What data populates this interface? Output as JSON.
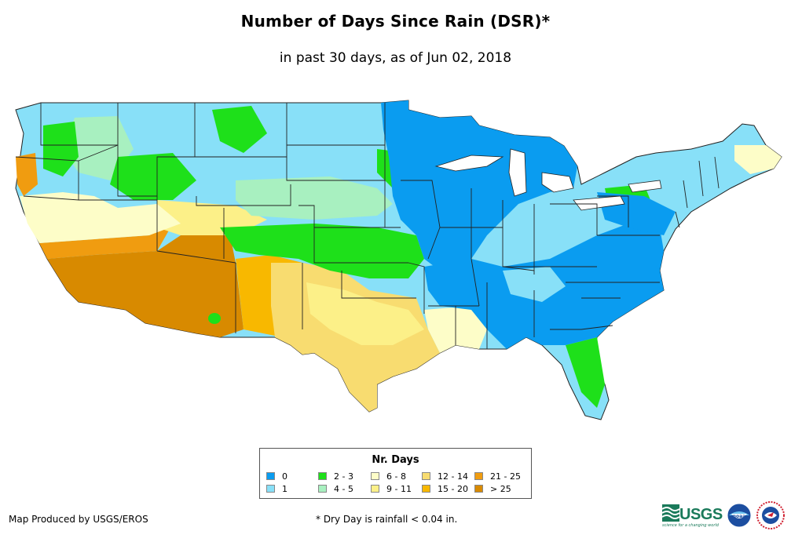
{
  "title": "Number of Days Since Rain (DSR)*",
  "subtitle": "in past 30 days, as of Jun 02, 2018",
  "legend": {
    "title": "Nr. Days",
    "items": [
      {
        "label": "0",
        "color": "#0a9cf0"
      },
      {
        "label": "1",
        "color": "#88e0f8"
      },
      {
        "label": "2 - 3",
        "color": "#1ee01a"
      },
      {
        "label": "4 - 5",
        "color": "#a8f0c0"
      },
      {
        "label": "6 - 8",
        "color": "#fdfdc8"
      },
      {
        "label": "9 - 11",
        "color": "#fcf088"
      },
      {
        "label": "12 - 14",
        "color": "#f8dc70"
      },
      {
        "label": "15 - 20",
        "color": "#f8b800"
      },
      {
        "label": "21 - 25",
        "color": "#f09c10"
      },
      {
        "label": "> 25",
        "color": "#d88a00"
      }
    ]
  },
  "credit": "Map Produced by USGS/EROS",
  "footnote": "* Dry Day is rainfall < 0.04 in.",
  "logos": {
    "usgs": "USGS",
    "usgs_tagline": "science for a changing world",
    "noaa": "noaa-logo",
    "nws": "nws-logo"
  },
  "colors": {
    "border": "#222222",
    "logo_green": "#1a7a5a"
  }
}
